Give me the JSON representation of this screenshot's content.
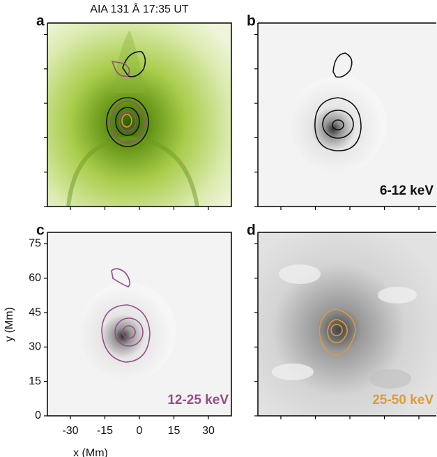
{
  "title": "AIA 131 Å 17:35 UT",
  "axes": {
    "xlabel": "x (Mm)",
    "ylabel": "y (Mm)",
    "xlim": [
      -40,
      40
    ],
    "ylim": [
      0,
      80
    ],
    "xticks": [
      -30,
      -15,
      0,
      15,
      30
    ],
    "yticks": [
      0,
      15,
      30,
      45,
      60,
      75
    ]
  },
  "panels": [
    {
      "letter": "a"
    },
    {
      "letter": "b",
      "label": "6-12 keV",
      "color": "#111111"
    },
    {
      "letter": "c",
      "label": "12-25 keV",
      "color": "#9b4a86"
    },
    {
      "letter": "d",
      "label": "25-50 keV",
      "color": "#e09a3c"
    }
  ]
}
